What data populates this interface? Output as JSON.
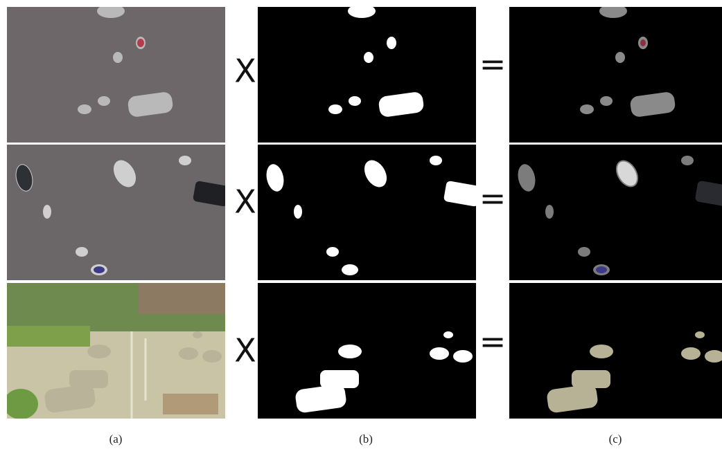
{
  "rows": [
    {
      "multiply": "X",
      "equals": "="
    },
    {
      "multiply": "X",
      "equals": "="
    },
    {
      "multiply": "X",
      "equals": "="
    }
  ],
  "captions": [
    "(a)",
    "(b)",
    "(c)"
  ]
}
